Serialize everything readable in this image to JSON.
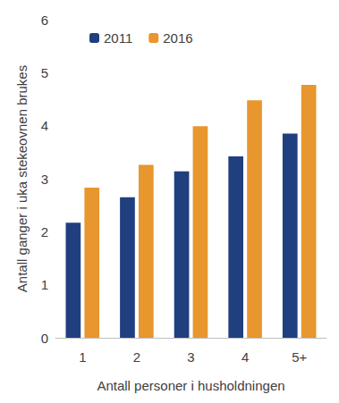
{
  "chart_data": {
    "type": "bar",
    "x_label": "Antall personer i husholdningen",
    "y_label": "Antall ganger i uka stekeovnen brukes",
    "categories": [
      "1",
      "2",
      "3",
      "4",
      "5+"
    ],
    "series": [
      {
        "name": "2011",
        "color": "#203f7f",
        "values": [
          2.17,
          2.65,
          3.14,
          3.42,
          3.85
        ]
      },
      {
        "name": "2016",
        "color": "#e8962e",
        "values": [
          2.83,
          3.26,
          3.99,
          4.48,
          4.77
        ]
      }
    ],
    "ylim": [
      0,
      6
    ],
    "yticks": [
      0,
      1,
      2,
      3,
      4,
      5,
      6
    ],
    "grid": false,
    "legend": "top-left"
  }
}
